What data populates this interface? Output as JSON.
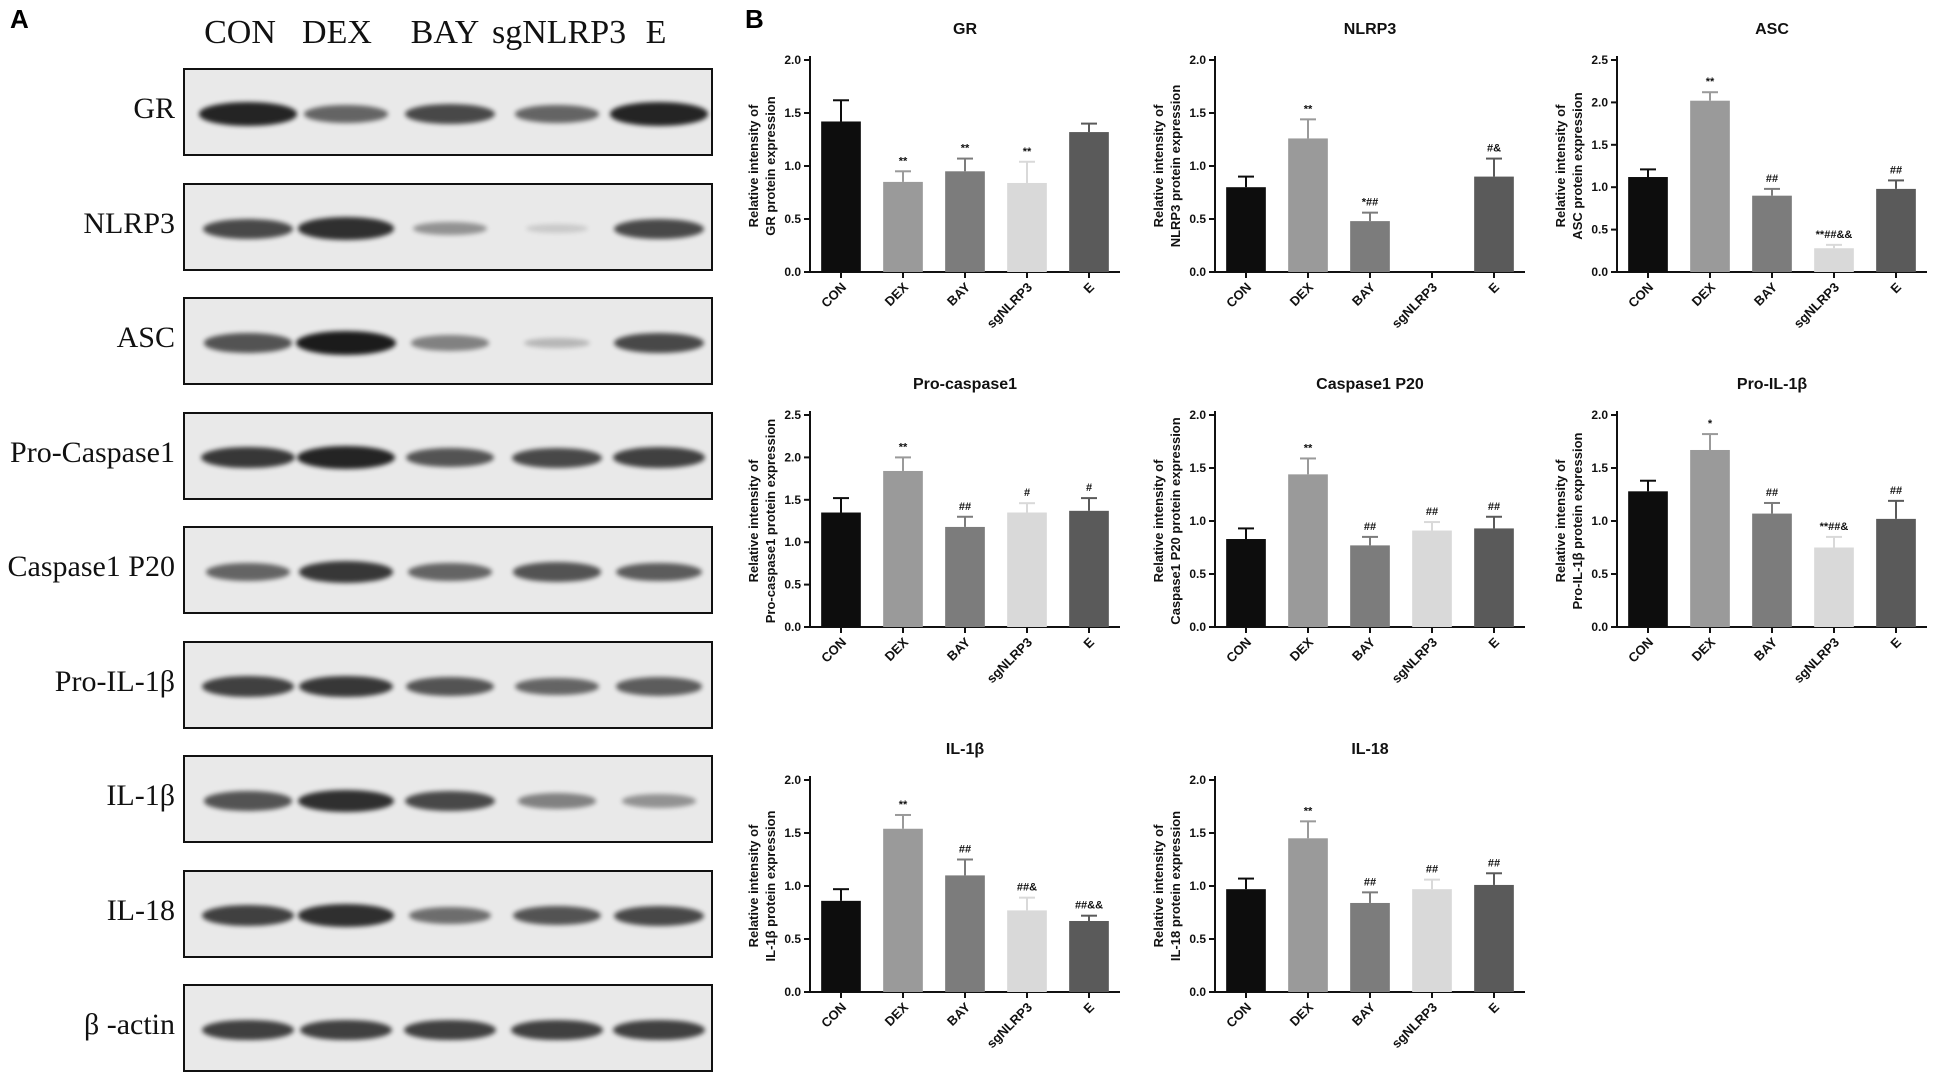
{
  "panel_labels": {
    "a": "A",
    "b": "B"
  },
  "blot": {
    "lanes": [
      "CON",
      "DEX",
      "BAY",
      "sgNLRP3",
      "E"
    ],
    "rows": [
      {
        "label": "GR",
        "intensity": [
          0.95,
          0.6,
          0.75,
          0.6,
          0.95
        ]
      },
      {
        "label": "NLRP3",
        "intensity": [
          0.75,
          0.9,
          0.35,
          0.05,
          0.75
        ]
      },
      {
        "label": "ASC",
        "intensity": [
          0.7,
          1.0,
          0.45,
          0.15,
          0.75
        ]
      },
      {
        "label": "Pro-Caspase1",
        "intensity": [
          0.85,
          0.95,
          0.7,
          0.75,
          0.8
        ]
      },
      {
        "label": "Caspase1 P20",
        "intensity": [
          0.6,
          0.85,
          0.6,
          0.7,
          0.65
        ]
      },
      {
        "label": "Pro-IL-1β",
        "intensity": [
          0.8,
          0.85,
          0.7,
          0.6,
          0.65
        ]
      },
      {
        "label": "IL-1β",
        "intensity": [
          0.7,
          0.9,
          0.75,
          0.45,
          0.35
        ]
      },
      {
        "label": "IL-18",
        "intensity": [
          0.8,
          0.9,
          0.55,
          0.7,
          0.75
        ]
      },
      {
        "label": "β -actin",
        "intensity": [
          0.8,
          0.8,
          0.8,
          0.8,
          0.8
        ]
      }
    ]
  },
  "chart_data": [
    {
      "type": "bar",
      "title": "GR",
      "ylabel": [
        "Relative intensity of",
        "GR protein expression"
      ],
      "categories": [
        "CON",
        "DEX",
        "BAY",
        "sgNLRP3",
        "E"
      ],
      "values": [
        1.42,
        0.85,
        0.95,
        0.84,
        1.32
      ],
      "errors": [
        0.2,
        0.1,
        0.12,
        0.2,
        0.08
      ],
      "annotations": [
        "",
        "**",
        "**",
        "**",
        ""
      ],
      "ylim": [
        0,
        2.0
      ],
      "yticks": [
        "0.0",
        "0.5",
        "1.0",
        "1.5",
        "2.0"
      ]
    },
    {
      "type": "bar",
      "title": "NLRP3",
      "ylabel": [
        "Relative intensity of",
        "NLRP3 protein expression"
      ],
      "categories": [
        "CON",
        "DEX",
        "BAY",
        "sgNLRP3",
        "E"
      ],
      "values": [
        0.8,
        1.26,
        0.48,
        0,
        0.9
      ],
      "errors": [
        0.1,
        0.18,
        0.08,
        0,
        0.17
      ],
      "annotations": [
        "",
        "**",
        "*##",
        "",
        "#&"
      ],
      "ylim": [
        0,
        2.0
      ],
      "yticks": [
        "0.0",
        "0.5",
        "1.0",
        "1.5",
        "2.0"
      ]
    },
    {
      "type": "bar",
      "title": "ASC",
      "ylabel": [
        "Relative intensity of",
        "ASC protein expression"
      ],
      "categories": [
        "CON",
        "DEX",
        "BAY",
        "sgNLRP3",
        "E"
      ],
      "values": [
        1.12,
        2.02,
        0.9,
        0.28,
        0.98
      ],
      "errors": [
        0.09,
        0.1,
        0.08,
        0.04,
        0.1
      ],
      "annotations": [
        "",
        "**",
        "##",
        "**##&&",
        "##"
      ],
      "ylim": [
        0,
        2.5
      ],
      "yticks": [
        "0.0",
        "0.5",
        "1.0",
        "1.5",
        "2.0",
        "2.5"
      ]
    },
    {
      "type": "bar",
      "title": "Pro-caspase1",
      "ylabel": [
        "Relative intensity of",
        "Pro-caspase1 protein expression"
      ],
      "categories": [
        "CON",
        "DEX",
        "BAY",
        "sgNLRP3",
        "E"
      ],
      "values": [
        1.35,
        1.84,
        1.18,
        1.35,
        1.37
      ],
      "errors": [
        0.17,
        0.16,
        0.12,
        0.11,
        0.15
      ],
      "annotations": [
        "",
        "**",
        "##",
        "#",
        "#"
      ],
      "ylim": [
        0,
        2.5
      ],
      "yticks": [
        "0.0",
        "0.5",
        "1.0",
        "1.5",
        "2.0",
        "2.5"
      ]
    },
    {
      "type": "bar",
      "title": "Caspase1 P20",
      "ylabel": [
        "Relative intensity of",
        "Caspase1 P20 protein expression"
      ],
      "categories": [
        "CON",
        "DEX",
        "BAY",
        "sgNLRP3",
        "E"
      ],
      "values": [
        0.83,
        1.44,
        0.77,
        0.91,
        0.93
      ],
      "errors": [
        0.1,
        0.15,
        0.08,
        0.08,
        0.11
      ],
      "annotations": [
        "",
        "**",
        "##",
        "##",
        "##"
      ],
      "ylim": [
        0,
        2.0
      ],
      "yticks": [
        "0.0",
        "0.5",
        "1.0",
        "1.5",
        "2.0"
      ]
    },
    {
      "type": "bar",
      "title": "Pro-IL-1β",
      "ylabel": [
        "Relative intensity of",
        "Pro-IL-1β protein expression"
      ],
      "categories": [
        "CON",
        "DEX",
        "BAY",
        "sgNLRP3",
        "E"
      ],
      "values": [
        1.28,
        1.67,
        1.07,
        0.75,
        1.02
      ],
      "errors": [
        0.1,
        0.15,
        0.1,
        0.1,
        0.17
      ],
      "annotations": [
        "",
        "*",
        "##",
        "**##&",
        "##"
      ],
      "ylim": [
        0,
        2.0
      ],
      "yticks": [
        "0.0",
        "0.5",
        "1.0",
        "1.5",
        "2.0"
      ]
    },
    {
      "type": "bar",
      "title": "IL-1β",
      "ylabel": [
        "Relative intensity of",
        "IL-1β protein expression"
      ],
      "categories": [
        "CON",
        "DEX",
        "BAY",
        "sgNLRP3",
        "E"
      ],
      "values": [
        0.86,
        1.54,
        1.1,
        0.77,
        0.67
      ],
      "errors": [
        0.11,
        0.13,
        0.15,
        0.12,
        0.05
      ],
      "annotations": [
        "",
        "**",
        "##",
        "##&",
        "##&&"
      ],
      "ylim": [
        0,
        2.0
      ],
      "yticks": [
        "0.0",
        "0.5",
        "1.0",
        "1.5",
        "2.0"
      ]
    },
    {
      "type": "bar",
      "title": "IL-18",
      "ylabel": [
        "Relative intensity of",
        "IL-18 protein expression"
      ],
      "categories": [
        "CON",
        "DEX",
        "BAY",
        "sgNLRP3",
        "E"
      ],
      "values": [
        0.97,
        1.45,
        0.84,
        0.97,
        1.01
      ],
      "errors": [
        0.1,
        0.16,
        0.1,
        0.09,
        0.11
      ],
      "annotations": [
        "",
        "**",
        "##",
        "##",
        "##"
      ],
      "ylim": [
        0,
        2.0
      ],
      "yticks": [
        "0.0",
        "0.5",
        "1.0",
        "1.5",
        "2.0"
      ]
    }
  ],
  "colors": {
    "bars": [
      "#0d0d0d",
      "#9a9a9a",
      "#7c7c7c",
      "#d9d9d9",
      "#5a5a5a"
    ],
    "blot_background": "#e9e9e9"
  }
}
